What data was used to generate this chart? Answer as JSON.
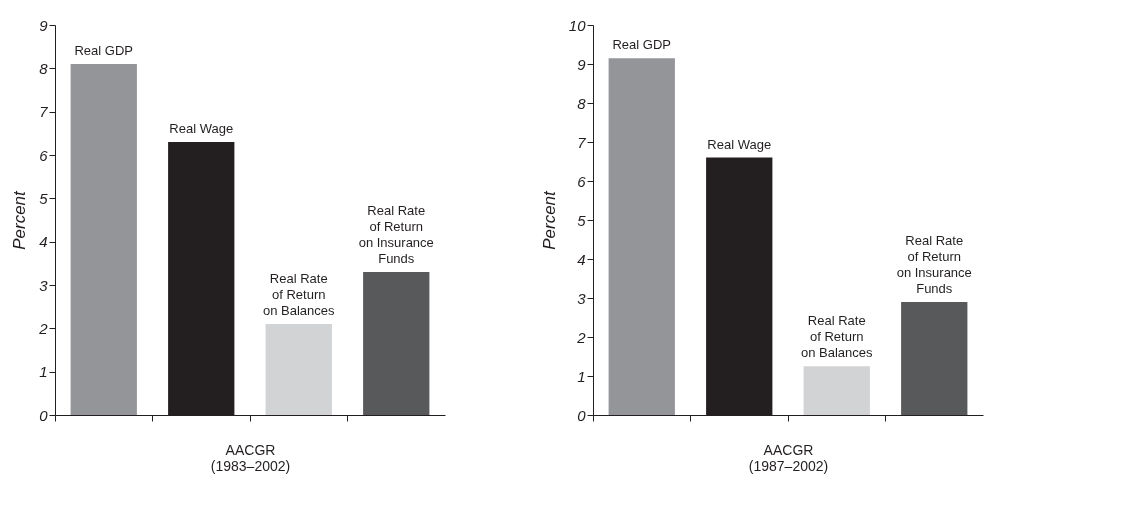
{
  "chart_data": [
    {
      "type": "bar",
      "categories": [
        "Real GDP",
        "Real Wage",
        "Real Rate\nof Return\non Balances",
        "Real Rate\nof Return\non Insurance\nFunds"
      ],
      "values": [
        8.1,
        6.3,
        2.1,
        3.3
      ],
      "colors": [
        "#939598",
        "#231f20",
        "#d1d3d4",
        "#58595b"
      ],
      "xlabel": "AACGR\n(1983–2002)",
      "ylabel": "Percent",
      "ylim": [
        0,
        9
      ],
      "yticks": [
        0,
        1,
        2,
        3,
        4,
        5,
        6,
        7,
        8,
        9
      ],
      "grid": false,
      "legend": false
    },
    {
      "type": "bar",
      "categories": [
        "Real GDP",
        "Real Wage",
        "Real Rate\nof Return\non Balances",
        "Real Rate\nof Return\non Insurance\nFunds"
      ],
      "values": [
        9.15,
        6.6,
        1.25,
        2.9
      ],
      "colors": [
        "#939598",
        "#231f20",
        "#d1d3d4",
        "#58595b"
      ],
      "xlabel": "AACGR\n(1987–2002)",
      "ylabel": "Percent",
      "ylim": [
        0,
        10
      ],
      "yticks": [
        0,
        1,
        2,
        3,
        4,
        5,
        6,
        7,
        8,
        9,
        10
      ],
      "grid": false,
      "legend": false
    }
  ]
}
